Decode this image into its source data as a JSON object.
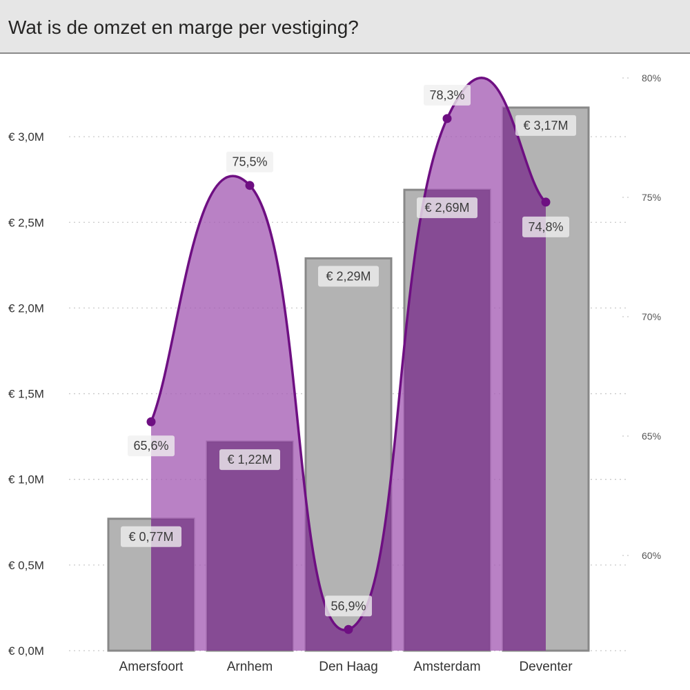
{
  "header": {
    "title": "Wat is de omzet en marge per vestiging?"
  },
  "colors": {
    "bar_fill": "#b3b3b3",
    "bar_stroke": "#888888",
    "area_fill": "#a55eb5",
    "line": "#6e0f82",
    "label_bg": "#efefef",
    "grid": "#c8c8c8"
  },
  "chart_data": {
    "type": "bar",
    "categories": [
      "Amersfoort",
      "Arnhem",
      "Den Haag",
      "Amsterdam",
      "Deventer"
    ],
    "series": [
      {
        "type": "bar",
        "axis": "left",
        "values": [
          0.77,
          1.22,
          2.29,
          2.69,
          3.17
        ],
        "labels": [
          "€ 0,77M",
          "€ 1,22M",
          "€ 2,29M",
          "€ 2,69M",
          "€ 3,17M"
        ]
      },
      {
        "type": "area",
        "axis": "right",
        "values": [
          65.6,
          75.5,
          56.9,
          78.3,
          74.8
        ],
        "labels": [
          "65,6%",
          "75,5%",
          "56,9%",
          "78,3%",
          "74,8%"
        ]
      }
    ],
    "y_left": {
      "min": 0,
      "max": 3.0,
      "ticks": [
        0,
        0.5,
        1.0,
        1.5,
        2.0,
        2.5,
        3.0
      ],
      "tick_labels": [
        "€ 0,0M",
        "€ 0,5M",
        "€ 1,0M",
        "€ 1,5M",
        "€ 2,0M",
        "€ 2,5M",
        "€ 3,0M"
      ]
    },
    "y_right": {
      "ticks": [
        60,
        65,
        70,
        75,
        80
      ],
      "tick_labels": [
        "60%",
        "65%",
        "70%",
        "75%",
        "80%"
      ]
    },
    "grid": true,
    "legend": "none"
  }
}
